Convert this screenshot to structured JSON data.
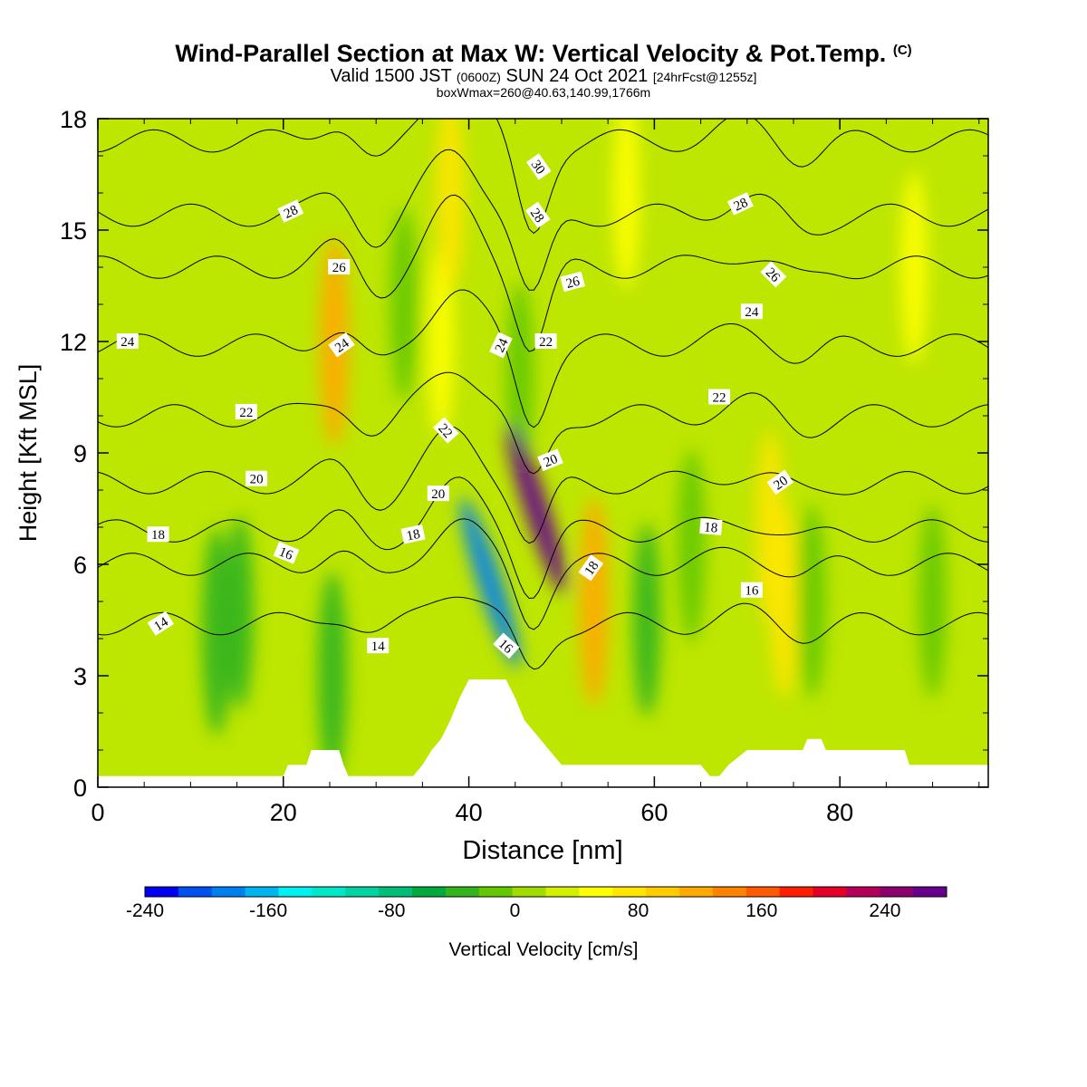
{
  "title": {
    "main": "Wind-Parallel Section at Max W: Vertical Velocity & Pot.Temp.",
    "copyright": "(C)",
    "valid_prefix": "Valid 1500 JST",
    "valid_utc": "(0600Z)",
    "valid_date": "SUN 24 Oct 2021",
    "forecast": "[24hrFcst@1255z]",
    "box_info": "boxWmax=260@40.63,140.99,1766m"
  },
  "chart_data": {
    "type": "heatmap",
    "xlabel": "Distance [nm]",
    "ylabel": "Height [Kft MSL]",
    "xlim": [
      0,
      96
    ],
    "ylim": [
      0,
      18
    ],
    "x_ticks": [
      0,
      20,
      40,
      60,
      80
    ],
    "y_ticks": [
      0,
      3,
      6,
      9,
      12,
      15,
      18
    ],
    "colorbar": {
      "label": "Vertical Velocity [cm/s]",
      "min": -240,
      "max": 280,
      "step": 20,
      "tick_values": [
        -240,
        -160,
        -80,
        0,
        80,
        160,
        240
      ],
      "tick_labels": [
        "-240",
        "-160",
        "-80",
        "0",
        "80",
        "160",
        "240"
      ],
      "colors": [
        "#0000f0",
        "#0050f0",
        "#0080f0",
        "#00b4f0",
        "#00f0f0",
        "#00e6c8",
        "#00d2a0",
        "#00be78",
        "#00aa3c",
        "#32b41e",
        "#64c800",
        "#a0dc00",
        "#d2f000",
        "#ffff00",
        "#ffe600",
        "#ffcc00",
        "#ffaa00",
        "#ff8200",
        "#ff5a00",
        "#ff1e00",
        "#e60028",
        "#b4005a",
        "#8c006e",
        "#64008c"
      ]
    },
    "velocity_features": [
      {
        "x": 42.3,
        "y": 5.5,
        "value": -200
      },
      {
        "x": 47.3,
        "y": 7.5,
        "value": 240
      },
      {
        "x": 53.5,
        "y": 5.0,
        "value": 80
      },
      {
        "x": 25.5,
        "y": 12.0,
        "value": 80
      },
      {
        "x": 72.5,
        "y": 7.0,
        "value": 40
      },
      {
        "x": 74.0,
        "y": 5.0,
        "value": 40
      },
      {
        "x": 37.0,
        "y": 12.0,
        "value": 30
      },
      {
        "x": 38.0,
        "y": 16.0,
        "value": 40
      },
      {
        "x": 57.0,
        "y": 16.0,
        "value": 30
      },
      {
        "x": 88.0,
        "y": 14.0,
        "value": 20
      },
      {
        "x": 12.8,
        "y": 4.2,
        "value": -60
      },
      {
        "x": 15.3,
        "y": 4.7,
        "value": -55
      },
      {
        "x": 25.3,
        "y": 3.0,
        "value": -60
      },
      {
        "x": 59.2,
        "y": 4.5,
        "value": -50
      },
      {
        "x": 64.0,
        "y": 6.5,
        "value": -35
      },
      {
        "x": 77.0,
        "y": 5.0,
        "value": -40
      },
      {
        "x": 90.0,
        "y": 5.0,
        "value": -30
      },
      {
        "x": 33.0,
        "y": 13.0,
        "value": -25
      },
      {
        "x": 45.5,
        "y": 11.0,
        "value": -40
      }
    ],
    "theta_contours": [
      {
        "label": "14",
        "base": 4.4
      },
      {
        "label": "16",
        "base": 6.0
      },
      {
        "label": "18",
        "base": 6.9
      },
      {
        "label": "20",
        "base": 8.2
      },
      {
        "label": "22",
        "base": 10.0
      },
      {
        "label": "24",
        "base": 11.9
      },
      {
        "label": "26",
        "base": 14.0
      },
      {
        "label": "28",
        "base": 15.4
      },
      {
        "label": "30",
        "base": 17.4
      }
    ],
    "contour_labels": [
      {
        "text": "14",
        "x": 6.8,
        "y": 4.4,
        "rot": -32
      },
      {
        "text": "14",
        "x": 30.2,
        "y": 3.8,
        "rot": 0
      },
      {
        "text": "16",
        "x": 20.3,
        "y": 6.3,
        "rot": 22
      },
      {
        "text": "16",
        "x": 44.0,
        "y": 3.8,
        "rot": 42
      },
      {
        "text": "16",
        "x": 70.5,
        "y": 5.3,
        "rot": 0
      },
      {
        "text": "18",
        "x": 6.5,
        "y": 6.8,
        "rot": 0
      },
      {
        "text": "18",
        "x": 34.0,
        "y": 6.8,
        "rot": -12
      },
      {
        "text": "18",
        "x": 53.2,
        "y": 5.9,
        "rot": -55
      },
      {
        "text": "18",
        "x": 66.1,
        "y": 7.0,
        "rot": 5
      },
      {
        "text": "20",
        "x": 17.1,
        "y": 8.3,
        "rot": 0
      },
      {
        "text": "20",
        "x": 36.7,
        "y": 7.9,
        "rot": 0
      },
      {
        "text": "20",
        "x": 48.8,
        "y": 8.8,
        "rot": -22
      },
      {
        "text": "20",
        "x": 73.6,
        "y": 8.2,
        "rot": -35
      },
      {
        "text": "22",
        "x": 16.0,
        "y": 10.1,
        "rot": 0
      },
      {
        "text": "22",
        "x": 37.5,
        "y": 9.6,
        "rot": 48
      },
      {
        "text": "22",
        "x": 67.0,
        "y": 10.5,
        "rot": 0
      },
      {
        "text": "22",
        "x": 48.3,
        "y": 12.0,
        "rot": 0
      },
      {
        "text": "24",
        "x": 3.2,
        "y": 12.0,
        "rot": 0
      },
      {
        "text": "24",
        "x": 26.3,
        "y": 11.9,
        "rot": -35
      },
      {
        "text": "24",
        "x": 43.5,
        "y": 11.9,
        "rot": -65
      },
      {
        "text": "24",
        "x": 70.5,
        "y": 12.8,
        "rot": 0
      },
      {
        "text": "26",
        "x": 26.0,
        "y": 14.0,
        "rot": 0
      },
      {
        "text": "26",
        "x": 51.2,
        "y": 13.6,
        "rot": -15
      },
      {
        "text": "26",
        "x": 72.8,
        "y": 13.8,
        "rot": 45
      },
      {
        "text": "28",
        "x": 20.8,
        "y": 15.5,
        "rot": -25
      },
      {
        "text": "28",
        "x": 47.4,
        "y": 15.4,
        "rot": 55
      },
      {
        "text": "28",
        "x": 69.3,
        "y": 15.7,
        "rot": -25
      },
      {
        "text": "30",
        "x": 47.5,
        "y": 16.7,
        "rot": 55
      }
    ],
    "terrain": [
      [
        0,
        0.3
      ],
      [
        20,
        0.3
      ],
      [
        20.5,
        0.6
      ],
      [
        22.5,
        0.6
      ],
      [
        23,
        1.0
      ],
      [
        26,
        1.0
      ],
      [
        26.5,
        0.6
      ],
      [
        27,
        0.3
      ],
      [
        34,
        0.3
      ],
      [
        35,
        0.6
      ],
      [
        36,
        1.0
      ],
      [
        37,
        1.3
      ],
      [
        38,
        1.8
      ],
      [
        39,
        2.4
      ],
      [
        40,
        2.9
      ],
      [
        44,
        2.9
      ],
      [
        45,
        2.4
      ],
      [
        46,
        1.8
      ],
      [
        47,
        1.5
      ],
      [
        48,
        1.2
      ],
      [
        49,
        0.9
      ],
      [
        50,
        0.6
      ],
      [
        51,
        0.6
      ],
      [
        60,
        0.6
      ],
      [
        65,
        0.6
      ],
      [
        66,
        0.3
      ],
      [
        67,
        0.3
      ],
      [
        68,
        0.6
      ],
      [
        70,
        1.0
      ],
      [
        76,
        1.0
      ],
      [
        76.5,
        1.3
      ],
      [
        78,
        1.3
      ],
      [
        78.5,
        1.0
      ],
      [
        87,
        1.0
      ],
      [
        87.5,
        0.6
      ],
      [
        96,
        0.6
      ]
    ]
  }
}
